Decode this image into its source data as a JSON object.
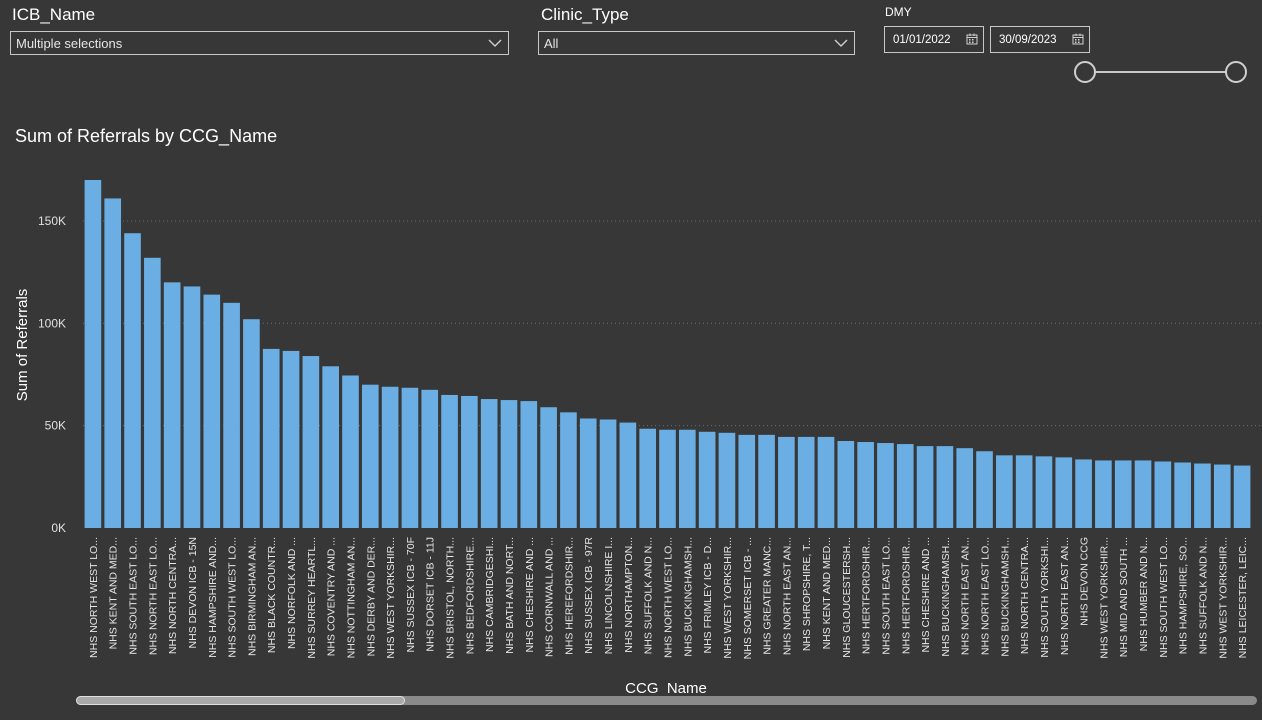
{
  "filters": {
    "icb": {
      "title": "ICB_Name",
      "value": "Multiple selections"
    },
    "clinic": {
      "title": "Clinic_Type",
      "value": "All"
    },
    "dmy": {
      "title": "DMY",
      "start": "01/01/2022",
      "end": "30/09/2023"
    }
  },
  "colors": {
    "bar": "#6aaee3",
    "background": "#373737",
    "grid": "#6a6a6a",
    "text": "#ffffff"
  },
  "icons": {
    "dropdown": "chevron-down-icon",
    "calendar": "calendar-icon"
  },
  "chart_data": {
    "type": "bar",
    "title": "Sum of Referrals by CCG_Name",
    "xlabel": "CCG_Name",
    "ylabel": "Sum of Referrals",
    "ylim": [
      0,
      170000
    ],
    "yticks": [
      0,
      50000,
      100000,
      150000
    ],
    "ytick_labels": [
      "0K",
      "50K",
      "100K",
      "150K"
    ],
    "grid": true,
    "categories": [
      "NHS NORTH WEST LO...",
      "NHS KENT AND MED...",
      "NHS SOUTH EAST LO...",
      "NHS NORTH EAST LO...",
      "NHS NORTH CENTRA...",
      "NHS DEVON ICB - 15N",
      "NHS HAMPSHIRE AND...",
      "NHS SOUTH WEST LO...",
      "NHS BIRMINGHAM AN...",
      "NHS BLACK COUNTR...",
      "NHS NORFOLK AND ...",
      "NHS SURREY HEARTL...",
      "NHS COVENTRY AND ...",
      "NHS NOTTINGHAM AN...",
      "NHS DERBY AND DER...",
      "NHS WEST YORKSHIR...",
      "NHS SUSSEX ICB - 70F",
      "NHS DORSET ICB - 11J",
      "NHS BRISTOL, NORTH...",
      "NHS BEDFORDSHIRE...",
      "NHS CAMBRIDGESHI...",
      "NHS BATH AND NORT...",
      "NHS CHESHIRE AND ...",
      "NHS CORNWALL AND ...",
      "NHS HEREFORDSHIR...",
      "NHS SUSSEX ICB - 97R",
      "NHS LINCOLNSHIRE I...",
      "NHS NORTHAMPTON...",
      "NHS SUFFOLK AND N...",
      "NHS NORTH WEST LO...",
      "NHS BUCKINGHAMSH...",
      "NHS FRIMLEY ICB - D...",
      "NHS WEST YORKSHIR...",
      "NHS SOMERSET ICB - ...",
      "NHS GREATER MANC...",
      "NHS NORTH EAST AN...",
      "NHS SHROPSHIRE, T...",
      "NHS KENT AND MED...",
      "NHS GLOUCESTERSH...",
      "NHS HERTFORDSHIR...",
      "NHS SOUTH EAST LO...",
      "NHS HERTFORDSHIR...",
      "NHS CHESHIRE AND ...",
      "NHS BUCKINGHAMSH...",
      "NHS NORTH EAST AN...",
      "NHS NORTH EAST LO...",
      "NHS BUCKINGHAMSH...",
      "NHS NORTH CENTRA...",
      "NHS SOUTH YORKSHI...",
      "NHS NORTH EAST AN...",
      "NHS DEVON CCG",
      "NHS WEST YORKSHIR...",
      "NHS MID AND SOUTH ...",
      "NHS HUMBER AND N...",
      "NHS SOUTH WEST LO...",
      "NHS HAMPSHIRE, SO...",
      "NHS SUFFOLK AND N...",
      "NHS WEST YORKSHIR...",
      "NHS LEICESTER, LEIC..."
    ],
    "values": [
      170000,
      161000,
      144000,
      132000,
      120000,
      118000,
      114000,
      110000,
      102000,
      87500,
      86500,
      84000,
      79000,
      74500,
      70000,
      69000,
      68500,
      67500,
      65000,
      64500,
      63000,
      62500,
      62000,
      59000,
      56500,
      53500,
      53000,
      51500,
      48500,
      48000,
      48000,
      47000,
      46500,
      45500,
      45500,
      44500,
      44500,
      44500,
      42500,
      42000,
      41500,
      41000,
      40000,
      40000,
      39000,
      37500,
      35500,
      35500,
      35000,
      34500,
      33500,
      33000,
      33000,
      33000,
      32500,
      32000,
      31500,
      31000,
      30500
    ]
  }
}
